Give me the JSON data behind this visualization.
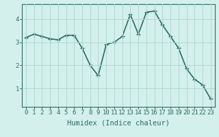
{
  "x": [
    0,
    1,
    2,
    3,
    4,
    5,
    6,
    7,
    8,
    9,
    10,
    11,
    12,
    13,
    14,
    15,
    16,
    17,
    18,
    19,
    20,
    21,
    22,
    23
  ],
  "y": [
    3.2,
    3.35,
    3.25,
    3.15,
    3.1,
    3.3,
    3.3,
    2.75,
    2.0,
    1.55,
    2.9,
    3.0,
    3.25,
    4.2,
    3.35,
    4.3,
    4.35,
    3.75,
    3.25,
    2.75,
    1.85,
    1.4,
    1.15,
    0.55
  ],
  "line_color": "#2a6b5e",
  "marker": "+",
  "marker_size": 4,
  "marker_lw": 1.0,
  "bg_color": "#d4f0ec",
  "grid_color": "#aed8d0",
  "xlabel": "Humidex (Indice chaleur)",
  "xlabel_fontsize": 7.5,
  "yticks": [
    1,
    2,
    3,
    4
  ],
  "xticks": [
    0,
    1,
    2,
    3,
    4,
    5,
    6,
    7,
    8,
    9,
    10,
    11,
    12,
    13,
    14,
    15,
    16,
    17,
    18,
    19,
    20,
    21,
    22,
    23
  ],
  "ylim": [
    0.2,
    4.65
  ],
  "xlim": [
    -0.5,
    23.5
  ],
  "tick_fontsize": 6.5,
  "line_width": 1.2,
  "spine_color": "#2a6b5e"
}
